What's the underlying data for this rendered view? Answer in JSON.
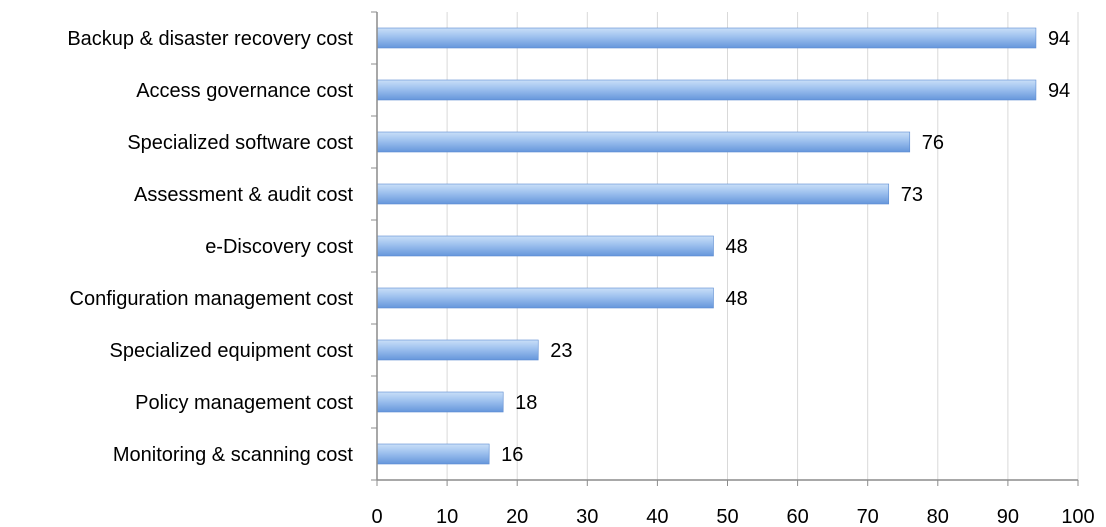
{
  "chart_data": {
    "type": "bar",
    "orientation": "horizontal",
    "categories": [
      "Backup & disaster recovery cost",
      "Access governance cost",
      "Specialized software cost",
      "Assessment & audit cost",
      "e-Discovery cost",
      "Configuration management cost",
      "Specialized equipment cost",
      "Policy management cost",
      "Monitoring & scanning cost"
    ],
    "values": [
      94,
      94,
      76,
      73,
      48,
      48,
      23,
      18,
      16
    ],
    "xlim": [
      0,
      100
    ],
    "xticks": [
      0,
      10,
      20,
      30,
      40,
      50,
      60,
      70,
      80,
      90,
      100
    ],
    "grid": "vertical",
    "data_labels": true,
    "legend": "none",
    "colors": {
      "bar_light": "#c2daf7",
      "bar_dark": "#6d9ee0",
      "bar_edge": "#5b8bd1",
      "grid": "#d9d9d9",
      "axis": "#8c8c8c"
    }
  }
}
